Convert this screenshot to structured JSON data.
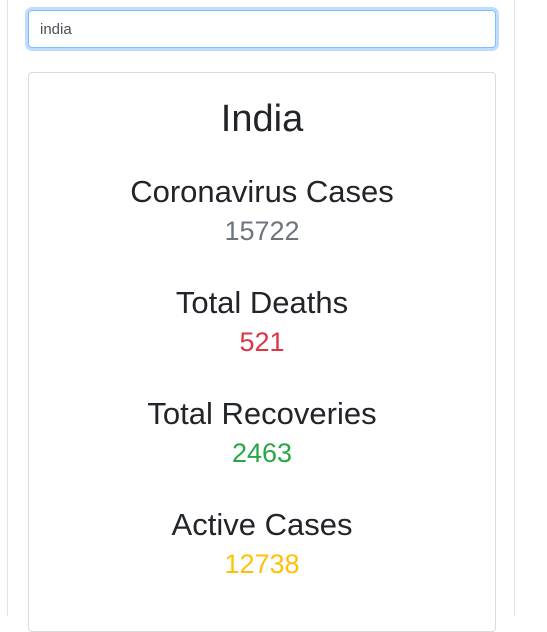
{
  "search": {
    "value": "india"
  },
  "card": {
    "country": "India",
    "stats": [
      {
        "label": "Coronavirus Cases",
        "value": "15722",
        "color": "#6c757d"
      },
      {
        "label": "Total Deaths",
        "value": "521",
        "color": "#dc3545"
      },
      {
        "label": "Total Recoveries",
        "value": "2463",
        "color": "#28a745"
      },
      {
        "label": "Active Cases",
        "value": "12738",
        "color": "#ffc107"
      }
    ]
  }
}
